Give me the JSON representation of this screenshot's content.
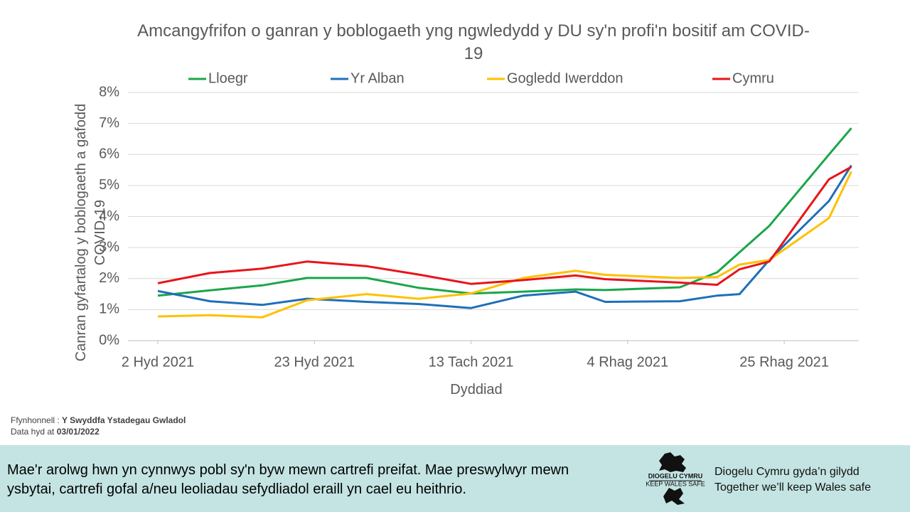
{
  "chart_data": {
    "type": "line",
    "title": "Amcangyfrifon o ganran y boblogaeth yng ngwledydd y DU sy'n profi'n bositif am COVID-19",
    "x_label": "Dyddiad",
    "y_label": "Canran gyfartalog y boblogaeth a gafodd COVID-19",
    "x": [
      "2021-10-02",
      "2021-10-09",
      "2021-10-16",
      "2021-10-22",
      "2021-10-30",
      "2021-11-06",
      "2021-11-13",
      "2021-11-20",
      "2021-11-27",
      "2021-12-01",
      "2021-12-11",
      "2021-12-16",
      "2021-12-19",
      "2021-12-23",
      "2021-12-31",
      "2022-01-03"
    ],
    "xlim": [
      "2021-09-28",
      "2022-01-04"
    ],
    "xticks": [
      {
        "value": "2021-10-02",
        "label": "2 Hyd 2021"
      },
      {
        "value": "2021-10-23",
        "label": "23 Hyd 2021"
      },
      {
        "value": "2021-11-13",
        "label": "13 Tach 2021"
      },
      {
        "value": "2021-12-04",
        "label": "4 Rhag 2021"
      },
      {
        "value": "2021-12-25",
        "label": "25 Rhag 2021"
      }
    ],
    "ylim": [
      0,
      8
    ],
    "yticks": [
      {
        "value": 0,
        "label": "0%"
      },
      {
        "value": 1,
        "label": "1%"
      },
      {
        "value": 2,
        "label": "2%"
      },
      {
        "value": 3,
        "label": "3%"
      },
      {
        "value": 4,
        "label": "4%"
      },
      {
        "value": 5,
        "label": "5%"
      },
      {
        "value": 6,
        "label": "6%"
      },
      {
        "value": 7,
        "label": "7%"
      },
      {
        "value": 8,
        "label": "8%"
      }
    ],
    "grid": true,
    "legend": "top",
    "series": [
      {
        "name": "Lloegr",
        "color": "#1aa64a",
        "values": [
          1.45,
          1.62,
          1.78,
          2.02,
          2.02,
          1.7,
          1.52,
          1.58,
          1.65,
          1.63,
          1.72,
          2.2,
          2.85,
          3.7,
          6.0,
          6.85
        ]
      },
      {
        "name": "Yr Alban",
        "color": "#1f6fb8",
        "values": [
          1.6,
          1.27,
          1.15,
          1.35,
          1.25,
          1.18,
          1.05,
          1.45,
          1.58,
          1.25,
          1.27,
          1.45,
          1.5,
          2.6,
          4.5,
          5.65
        ]
      },
      {
        "name": "Gogledd Iwerddon",
        "color": "#ffc000",
        "values": [
          0.78,
          0.82,
          0.75,
          1.3,
          1.5,
          1.35,
          1.52,
          2.02,
          2.25,
          2.12,
          2.02,
          2.05,
          2.45,
          2.6,
          3.95,
          5.45
        ]
      },
      {
        "name": "Cymru",
        "color": "#e8141a",
        "values": [
          1.85,
          2.18,
          2.32,
          2.55,
          2.4,
          2.13,
          1.83,
          1.95,
          2.1,
          1.98,
          1.87,
          1.8,
          2.3,
          2.55,
          5.2,
          5.6
        ]
      }
    ]
  },
  "source": {
    "label": "Ffynhonnell : ",
    "name": "Y Swyddfa Ystadegau Gwladol",
    "date_label": "Data hyd at ",
    "date": "03/01/2022"
  },
  "footer": {
    "note": "Mae'r arolwg hwn yn cynnwys pobl sy'n byw mewn cartrefi preifat. Mae preswylwyr mewn ysbytai, cartrefi gofal a/neu leoliadau sefydliadol eraill yn cael eu heithrio.",
    "logo_top": "DIOGELU CYMRU",
    "logo_bottom": "KEEP WALES SAFE",
    "slogan_cy": "Diogelu Cymru gyda’n gilydd",
    "slogan_en": "Together we’ll keep Wales safe"
  }
}
